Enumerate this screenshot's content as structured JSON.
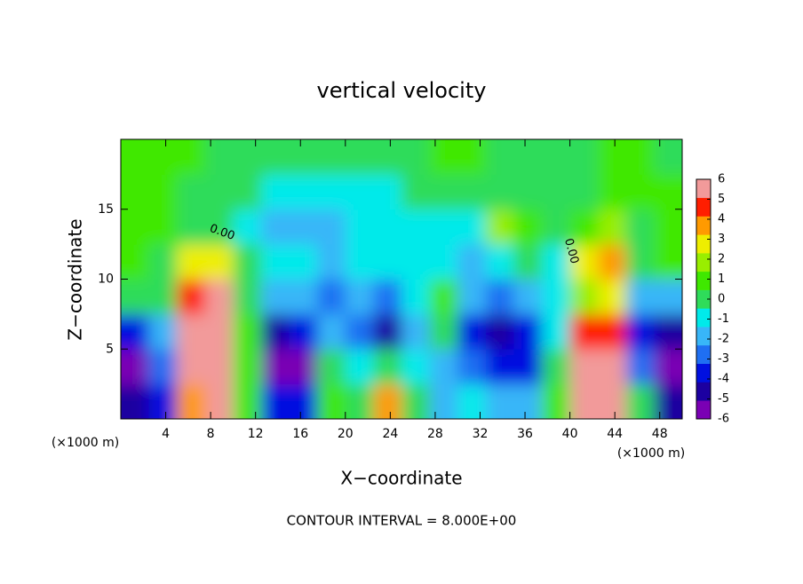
{
  "chart_data": {
    "type": "heatmap",
    "title": "vertical velocity",
    "x_label": "X−coordinate",
    "y_label": "Z−coordinate",
    "x_unit_left": "(×1000 m)",
    "x_unit_right": "(×1000 m)",
    "footer": "CONTOUR INTERVAL = 8.000E+00",
    "contour_labels": [
      "0.00",
      "0.00"
    ],
    "xlim": [
      0,
      50
    ],
    "xticks": [
      4,
      8,
      12,
      16,
      20,
      24,
      28,
      32,
      36,
      40,
      44,
      48
    ],
    "ylim": [
      0,
      20
    ],
    "yticks": [
      5,
      10,
      15
    ],
    "zlim": [
      -6,
      6
    ],
    "zticks": [
      6,
      5,
      4,
      3,
      2,
      1,
      0,
      -1,
      -2,
      -3,
      -4,
      -5,
      -6
    ],
    "colors": [
      "#7a00b4",
      "#1c00a0",
      "#0010e0",
      "#1f6ff2",
      "#38b6f8",
      "#00eaea",
      "#2fdc5a",
      "#3fe800",
      "#99ee00",
      "#eeee00",
      "#ff9a00",
      "#ff1e00",
      "#f29a9a"
    ],
    "x": [
      1.25,
      3.75,
      6.25,
      8.75,
      11.25,
      13.75,
      16.25,
      18.75,
      21.25,
      23.75,
      26.25,
      28.75,
      31.25,
      33.75,
      36.25,
      38.75,
      41.25,
      43.75,
      46.25,
      48.75
    ],
    "y": [
      1.25,
      3.75,
      6.25,
      8.75,
      11.25,
      13.75,
      16.25,
      18.75
    ],
    "z": [
      [
        -5,
        -4,
        4,
        6,
        1,
        -4,
        -4,
        1,
        0,
        4,
        0,
        -2,
        -1,
        -2,
        -2,
        1,
        6,
        6,
        0,
        -5
      ],
      [
        -6,
        -3,
        6,
        6,
        1,
        -6,
        -6,
        0,
        -1,
        0,
        -1,
        -2,
        -3,
        -4,
        -4,
        0,
        6,
        6,
        -3,
        -6
      ],
      [
        -4,
        -2,
        6,
        6,
        1,
        -5,
        -4,
        -2,
        -3,
        -5,
        -2,
        0,
        -4,
        -5,
        -4,
        -1,
        5,
        5,
        -4,
        -5
      ],
      [
        0,
        0,
        5,
        6,
        0,
        -2,
        -2,
        -3,
        -2,
        -3,
        -1,
        1,
        -2,
        -3,
        -2,
        -1,
        2,
        3,
        -2,
        -2
      ],
      [
        1,
        0,
        3,
        3,
        0,
        -1,
        -1,
        -2,
        -1,
        -1,
        -1,
        -1,
        -2,
        -1,
        0,
        -1,
        3,
        4,
        0,
        1
      ],
      [
        1,
        1,
        0,
        0,
        -1,
        -2,
        -2,
        -2,
        -1,
        -1,
        -1,
        -1,
        -1,
        2,
        1,
        0,
        1,
        2,
        0,
        1
      ],
      [
        1,
        1,
        0,
        0,
        0,
        -1,
        -1,
        -1,
        -1,
        -1,
        0,
        0,
        0,
        0,
        0,
        0,
        0,
        1,
        1,
        1
      ],
      [
        1,
        1,
        1,
        0,
        0,
        0,
        0,
        0,
        0,
        0,
        0,
        1,
        1,
        0,
        0,
        0,
        0,
        1,
        1,
        0
      ]
    ]
  }
}
